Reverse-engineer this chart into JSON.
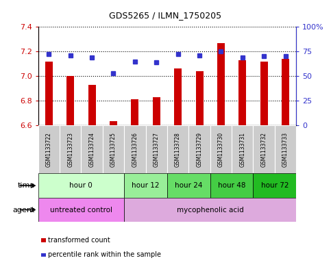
{
  "title": "GDS5265 / ILMN_1750205",
  "samples": [
    "GSM1133722",
    "GSM1133723",
    "GSM1133724",
    "GSM1133725",
    "GSM1133726",
    "GSM1133727",
    "GSM1133728",
    "GSM1133729",
    "GSM1133730",
    "GSM1133731",
    "GSM1133732",
    "GSM1133733"
  ],
  "red_values": [
    7.12,
    7.0,
    6.93,
    6.63,
    6.81,
    6.83,
    7.06,
    7.04,
    7.27,
    7.13,
    7.12,
    7.14
  ],
  "blue_values": [
    72,
    71,
    69,
    53,
    65,
    64,
    72,
    71,
    75,
    69,
    70,
    70
  ],
  "ylim_left": [
    6.6,
    7.4
  ],
  "ylim_right": [
    0,
    100
  ],
  "yticks_left": [
    6.6,
    6.8,
    7.0,
    7.2,
    7.4
  ],
  "yticks_right": [
    0,
    25,
    50,
    75,
    100
  ],
  "ytick_labels_right": [
    "0",
    "25",
    "50",
    "75",
    "100%"
  ],
  "bar_color": "#cc0000",
  "dot_color": "#3333cc",
  "bar_bottom": 6.6,
  "bar_width": 0.35,
  "time_groups": [
    {
      "label": "hour 0",
      "start": 0,
      "end": 4,
      "color": "#ccffcc"
    },
    {
      "label": "hour 12",
      "start": 4,
      "end": 6,
      "color": "#99ee99"
    },
    {
      "label": "hour 24",
      "start": 6,
      "end": 8,
      "color": "#66dd66"
    },
    {
      "label": "hour 48",
      "start": 8,
      "end": 10,
      "color": "#44cc44"
    },
    {
      "label": "hour 72",
      "start": 10,
      "end": 12,
      "color": "#22bb22"
    }
  ],
  "agent_groups": [
    {
      "label": "untreated control",
      "start": 0,
      "end": 4,
      "color": "#ee88ee"
    },
    {
      "label": "mycophenolic acid",
      "start": 4,
      "end": 12,
      "color": "#ddaadd"
    }
  ],
  "sample_label_bg": "#cccccc",
  "legend_red": "transformed count",
  "legend_blue": "percentile rank within the sample"
}
